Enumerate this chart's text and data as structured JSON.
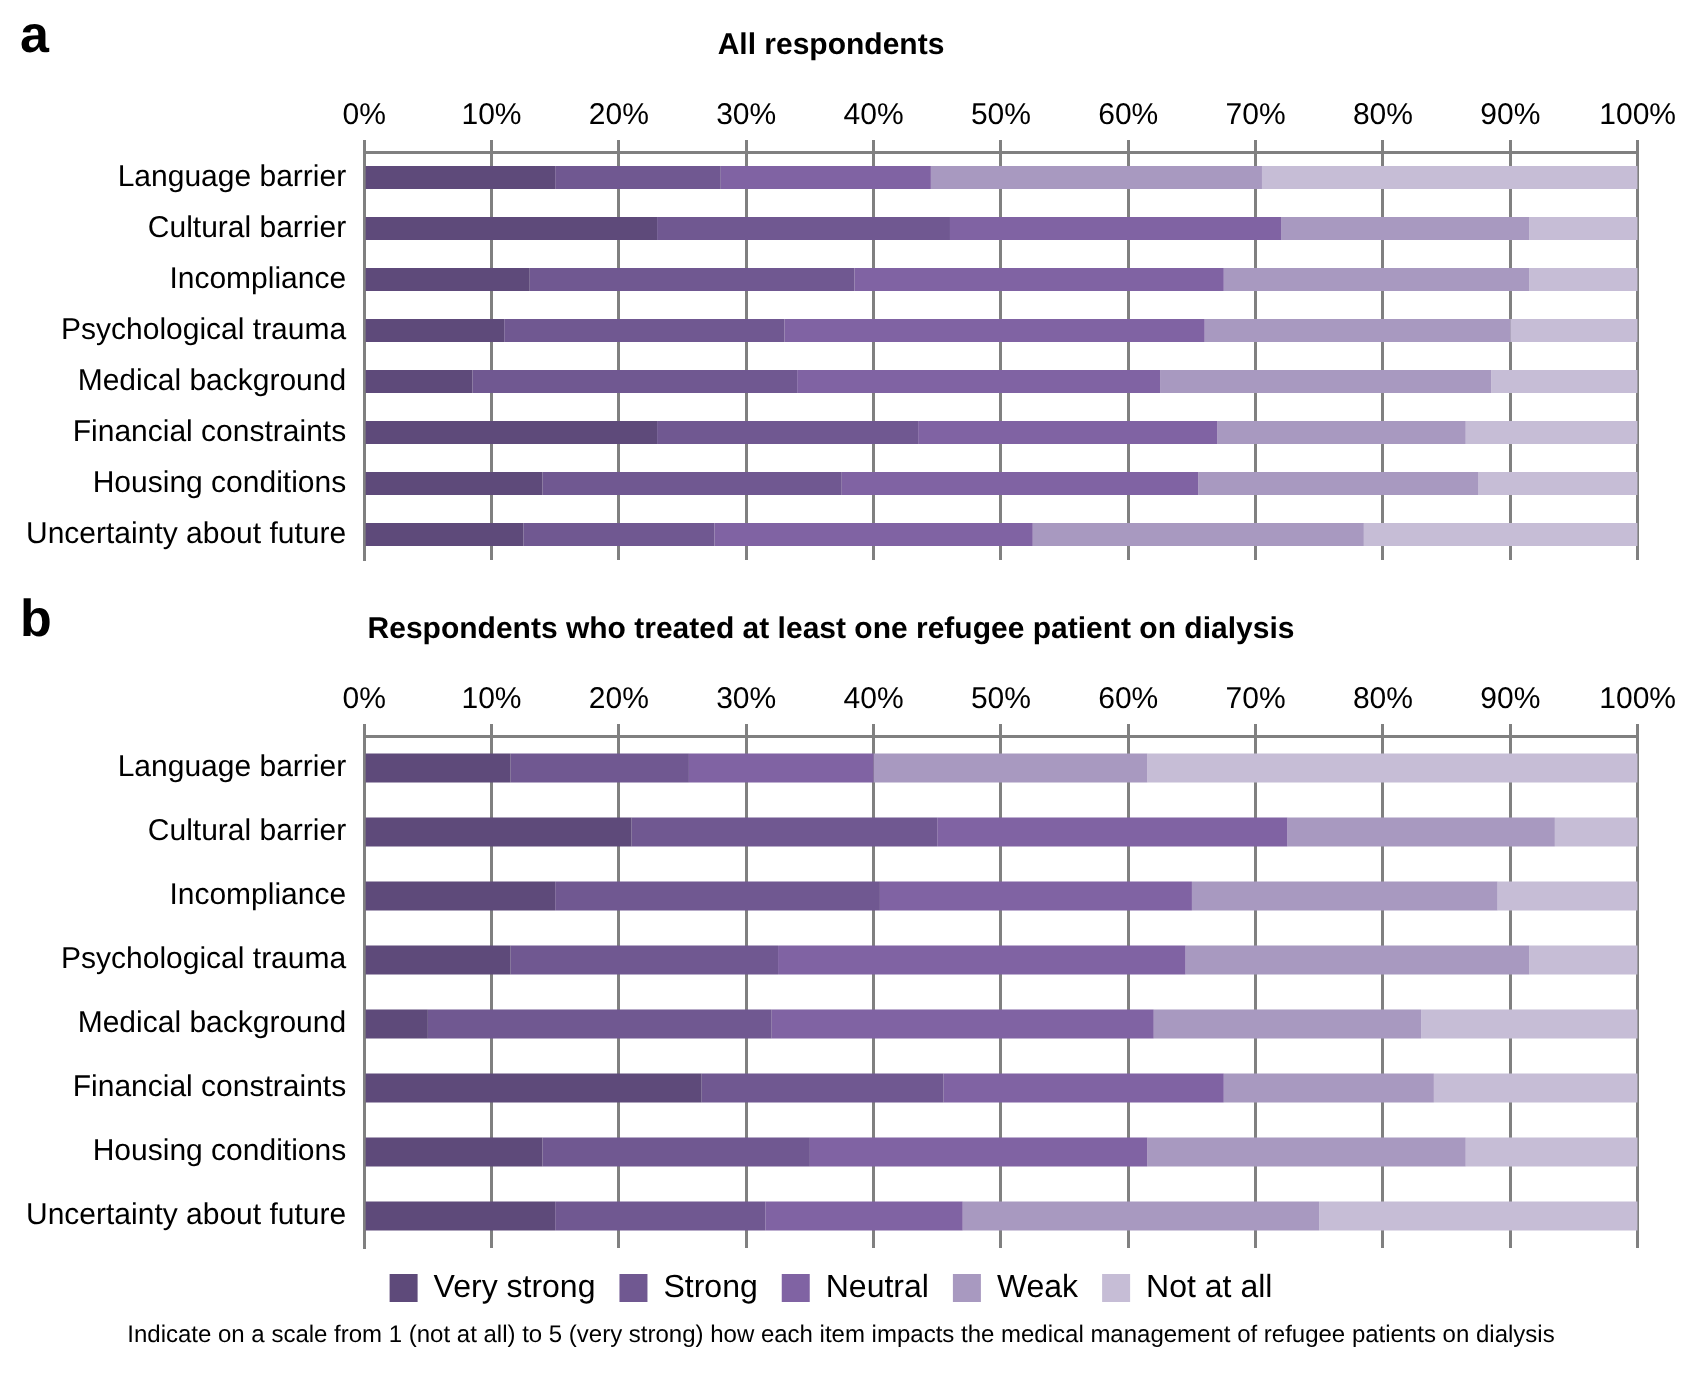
{
  "chart_data": [
    {
      "type": "bar",
      "orientation": "horizontal",
      "stacked": true,
      "title": "All respondents",
      "annotations": [
        "a"
      ],
      "categories": [
        "Language barrier",
        "Cultural barrier",
        "Incompliance",
        "Psychological trauma",
        "Medical background",
        "Financial constraints",
        "Housing conditions",
        "Uncertainty about future"
      ],
      "series": [
        {
          "color": "#5e4a7a",
          "values": [
            15,
            23,
            13,
            11,
            8.5,
            23,
            14,
            12.5
          ]
        },
        {
          "color": "#705891",
          "values": [
            13,
            23,
            25.5,
            22,
            25.5,
            20.5,
            23.5,
            15
          ]
        },
        {
          "color": "#8063a3",
          "values": [
            16.5,
            26,
            29,
            33,
            28.5,
            23.5,
            28,
            25
          ]
        },
        {
          "color": "#a899c0",
          "values": [
            26,
            19.5,
            24,
            24,
            26,
            19.5,
            22,
            26
          ]
        },
        {
          "color": "#c6bdd6",
          "values": [
            29.5,
            8.5,
            8.5,
            10,
            11.5,
            13.5,
            12.5,
            21.5
          ]
        }
      ],
      "xlim": [
        0,
        100
      ],
      "xticks": [
        {
          "value": 0,
          "label": "0%"
        },
        {
          "value": 10,
          "label": "10%"
        },
        {
          "value": 20,
          "label": "20%"
        },
        {
          "value": 30,
          "label": "30%"
        },
        {
          "value": 40,
          "label": "40%"
        },
        {
          "value": 50,
          "label": "50%"
        },
        {
          "value": 60,
          "label": "60%"
        },
        {
          "value": 70,
          "label": "70%"
        },
        {
          "value": 80,
          "label": "80%"
        },
        {
          "value": 90,
          "label": "90%"
        },
        {
          "value": 100,
          "label": "100%"
        }
      ],
      "grid": "x",
      "legend": false
    },
    {
      "type": "bar",
      "orientation": "horizontal",
      "stacked": true,
      "title": "Respondents who treated at least one refugee patient on dialysis",
      "annotations": [
        "b",
        "Indicate on a scale from 1 (not at all) to 5 (very strong) how each item impacts the medical management of refugee patients on dialysis"
      ],
      "categories": [
        "Language barrier",
        "Cultural barrier",
        "Incompliance",
        "Psychological trauma",
        "Medical background",
        "Financial constraints",
        "Housing conditions",
        "Uncertainty about future"
      ],
      "series": [
        {
          "name": "Very strong",
          "color": "#5e4a7a",
          "values": [
            11.5,
            21,
            15,
            11.5,
            5,
            26.5,
            14,
            15
          ]
        },
        {
          "name": "Strong",
          "color": "#705891",
          "values": [
            14,
            24,
            25.5,
            21,
            27,
            19,
            21,
            16.5
          ]
        },
        {
          "name": "Neutral",
          "color": "#8063a3",
          "values": [
            14.5,
            27.5,
            24.5,
            32,
            30,
            22,
            26.5,
            15.5
          ]
        },
        {
          "name": "Weak",
          "color": "#a899c0",
          "values": [
            21.5,
            21,
            24,
            27,
            21,
            16.5,
            25,
            28
          ]
        },
        {
          "name": "Not at all",
          "color": "#c6bdd6",
          "values": [
            38.5,
            6.5,
            11,
            8.5,
            17,
            16,
            13.5,
            25
          ]
        }
      ],
      "xlim": [
        0,
        100
      ],
      "xticks": [
        {
          "value": 0,
          "label": "0%"
        },
        {
          "value": 10,
          "label": "10%"
        },
        {
          "value": 20,
          "label": "20%"
        },
        {
          "value": 30,
          "label": "30%"
        },
        {
          "value": 40,
          "label": "40%"
        },
        {
          "value": 50,
          "label": "50%"
        },
        {
          "value": 60,
          "label": "60%"
        },
        {
          "value": 70,
          "label": "70%"
        },
        {
          "value": 80,
          "label": "80%"
        },
        {
          "value": 90,
          "label": "90%"
        },
        {
          "value": 100,
          "label": "100%"
        }
      ],
      "grid": "x",
      "legend": "bottom"
    }
  ]
}
